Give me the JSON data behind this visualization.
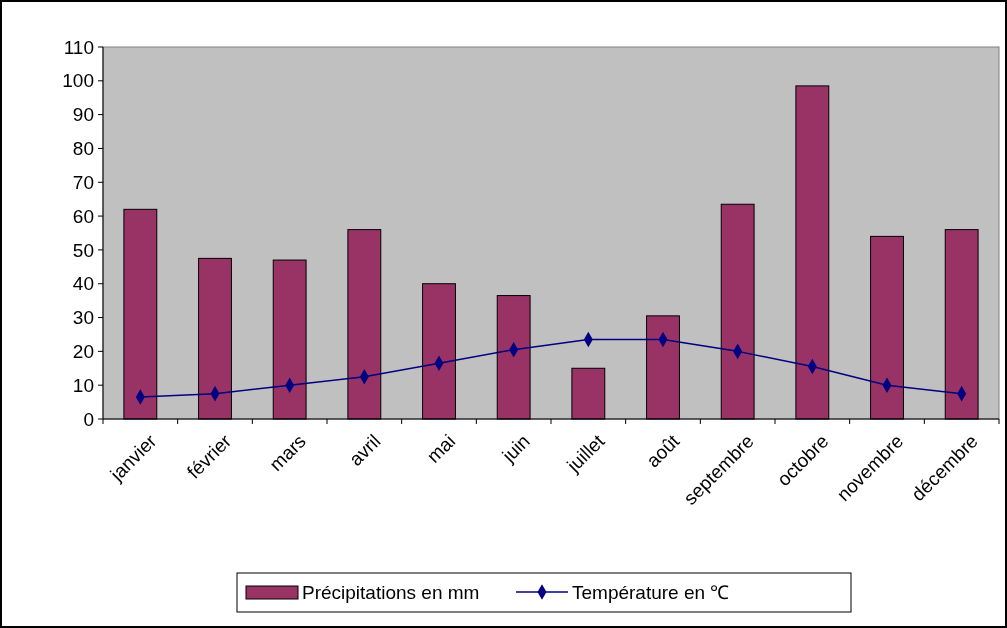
{
  "chart_data": {
    "type": "bar",
    "categories": [
      "janvier",
      "février",
      "mars",
      "avril",
      "mai",
      "juin",
      "juillet",
      "août",
      "septembre",
      "octobre",
      "novembre",
      "décembre"
    ],
    "series": [
      {
        "name": "Précipitations en mm",
        "color": "#993366",
        "values": [
          62,
          47.5,
          47,
          56,
          40,
          36.5,
          15,
          30.5,
          63.5,
          98.5,
          54,
          56
        ]
      },
      {
        "name": "Température en ℃",
        "type": "line",
        "color": "#000080",
        "values": [
          6.5,
          7.5,
          10,
          12.5,
          16.5,
          20.5,
          23.5,
          23.5,
          20,
          15.5,
          10,
          7.5
        ]
      }
    ],
    "ylim": [
      0,
      110
    ],
    "yticks": [
      0,
      10,
      20,
      30,
      40,
      50,
      60,
      70,
      80,
      90,
      100,
      110
    ],
    "grid": false,
    "legend": "bottom",
    "marker": "diamond",
    "line_style": "solid"
  }
}
